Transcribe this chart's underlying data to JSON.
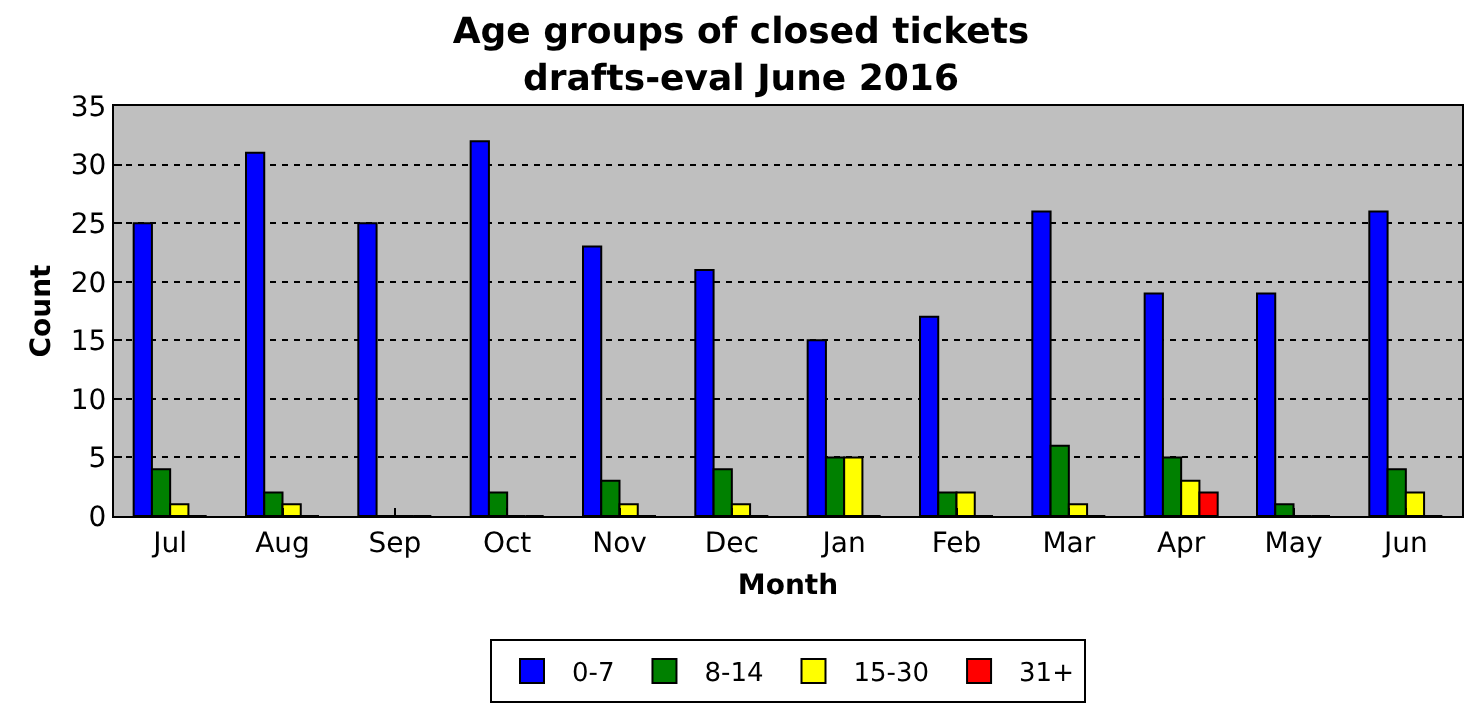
{
  "chart_data": {
    "type": "bar",
    "title": "Age groups of closed tickets\ndrafts-eval June 2016",
    "xlabel": "Month",
    "ylabel": "Count",
    "categories": [
      "Jul",
      "Aug",
      "Sep",
      "Oct",
      "Nov",
      "Dec",
      "Jan",
      "Feb",
      "Mar",
      "Apr",
      "May",
      "Jun"
    ],
    "series": [
      {
        "name": "0-7",
        "color": "#0000ff",
        "values": [
          25,
          31,
          25,
          32,
          23,
          21,
          15,
          17,
          26,
          19,
          19,
          26
        ]
      },
      {
        "name": "8-14",
        "color": "#008000",
        "values": [
          4,
          2,
          0,
          2,
          3,
          4,
          5,
          2,
          6,
          5,
          1,
          4
        ]
      },
      {
        "name": "15-30",
        "color": "#ffff00",
        "values": [
          1,
          1,
          0,
          0,
          1,
          1,
          5,
          2,
          1,
          3,
          0,
          2
        ]
      },
      {
        "name": "31+",
        "color": "#ff0000",
        "values": [
          0,
          0,
          0,
          0,
          0,
          0,
          0,
          0,
          0,
          2,
          0,
          0
        ]
      }
    ],
    "ylim": [
      0,
      35
    ],
    "yticks": [
      0,
      5,
      10,
      15,
      20,
      25,
      30,
      35
    ],
    "grid": "y",
    "legend": "bottom"
  }
}
